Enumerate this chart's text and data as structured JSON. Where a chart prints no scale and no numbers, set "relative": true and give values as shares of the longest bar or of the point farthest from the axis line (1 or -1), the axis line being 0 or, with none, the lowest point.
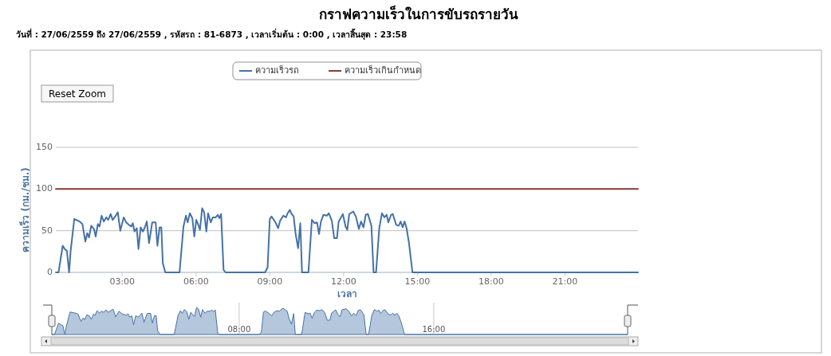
{
  "chart_data": [
    {
      "type": "line",
      "title": "กราฟความเร็วในการขับรถรายวัน",
      "subtitle": "วันที่ : 27/06/2559 ถึง 27/06/2559 , รหัสรถ : 81-6873 , เวลาเริ่มต้น : 0:00 , เวลาสิ้นสุด : 23:58",
      "xlabel": "เวลา",
      "ylabel": "ความเร็ว (กม./ชม.)",
      "annotations": [
        "Reset Zoom"
      ],
      "xlim": [
        0.3,
        23.97
      ],
      "xticks": [
        {
          "value": 3,
          "label": "03:00"
        },
        {
          "value": 6,
          "label": "06:00"
        },
        {
          "value": 9,
          "label": "09:00"
        },
        {
          "value": 12,
          "label": "12:00"
        },
        {
          "value": 15,
          "label": "15:00"
        },
        {
          "value": 18,
          "label": "18:00"
        },
        {
          "value": 21,
          "label": "21:00"
        }
      ],
      "ylim": [
        0,
        150
      ],
      "yticks": [
        0,
        50,
        100,
        150
      ],
      "grid": "y",
      "legend": "top",
      "series": [
        {
          "name": "ความเร็วรถ",
          "color": "#4572a7",
          "x": [
            0.3,
            0.41,
            0.58,
            0.69,
            0.75,
            0.84,
            0.9,
            1.05,
            1.27,
            1.38,
            1.5,
            1.58,
            1.65,
            1.74,
            1.85,
            1.92,
            2.01,
            2.08,
            2.16,
            2.25,
            2.35,
            2.43,
            2.53,
            2.61,
            2.69,
            2.82,
            2.92,
            3.06,
            3.16,
            3.27,
            3.37,
            3.43,
            3.5,
            3.59,
            3.66,
            3.75,
            3.84,
            3.92,
            4.0,
            4.09,
            4.22,
            4.36,
            4.43,
            4.52,
            4.59,
            4.65,
            4.75,
            5.33,
            5.49,
            5.59,
            5.66,
            5.75,
            5.85,
            5.93,
            6.01,
            6.08,
            6.16,
            6.25,
            6.33,
            6.42,
            6.49,
            6.6,
            6.68,
            6.8,
            6.89,
            6.95,
            7.02,
            7.12,
            7.2,
            8.81,
            8.91,
            9.0,
            9.07,
            9.23,
            9.34,
            9.42,
            9.55,
            9.66,
            9.71,
            9.81,
            9.89,
            9.97,
            10.05,
            10.15,
            10.24,
            10.31,
            10.57,
            10.71,
            10.82,
            10.92,
            11.0,
            11.08,
            11.18,
            11.32,
            11.4,
            11.52,
            11.62,
            11.73,
            11.8,
            11.97,
            12.08,
            12.15,
            12.23,
            12.39,
            12.5,
            12.62,
            12.71,
            12.81,
            12.9,
            12.99,
            13.13,
            13.22,
            13.32,
            13.45,
            13.56,
            13.66,
            13.75,
            13.82,
            13.93,
            14.0,
            14.14,
            14.24,
            14.32,
            14.4,
            14.48,
            14.56,
            14.66,
            14.8,
            23.97
          ],
          "values": [
            0,
            0,
            32,
            27,
            26,
            0,
            25,
            64,
            61,
            58,
            37,
            47,
            42,
            56,
            52,
            43,
            58,
            55,
            68,
            61,
            66,
            63,
            70,
            63,
            66,
            72,
            50,
            66,
            60,
            57,
            55,
            59,
            49,
            53,
            28,
            54,
            49,
            54,
            61,
            35,
            60,
            60,
            32,
            54,
            54,
            11,
            0,
            0,
            55,
            68,
            60,
            71,
            65,
            43,
            63,
            58,
            51,
            77,
            72,
            49,
            71,
            60,
            66,
            66,
            69,
            65,
            70,
            3,
            0,
            0,
            6,
            64,
            67,
            60,
            53,
            62,
            68,
            66,
            70,
            75,
            70,
            67,
            46,
            29,
            59,
            0,
            0,
            63,
            59,
            60,
            46,
            61,
            69,
            68,
            71,
            62,
            41,
            41,
            61,
            70,
            55,
            51,
            70,
            73,
            67,
            52,
            61,
            54,
            69,
            70,
            56,
            0,
            0,
            53,
            71,
            66,
            69,
            60,
            69,
            70,
            57,
            56,
            61,
            54,
            61,
            53,
            35,
            0,
            0
          ]
        },
        {
          "name": "ความเร็วเกินกำหนด",
          "color": "#8b3a3a",
          "x": [
            0.3,
            23.97
          ],
          "values": [
            100,
            100
          ]
        }
      ]
    },
    {
      "type": "area",
      "relative": true,
      "color": "#4572a7",
      "grid": "x",
      "tick_labels": "x",
      "xlim": [
        0.3,
        23.97
      ],
      "xticks": [
        {
          "value": 8,
          "label": "08:00"
        },
        {
          "value": 16,
          "label": "16:00"
        }
      ],
      "x": [
        0.3,
        0.41,
        0.58,
        0.69,
        0.75,
        0.84,
        0.9,
        1.05,
        1.27,
        1.38,
        1.5,
        1.58,
        1.65,
        1.74,
        1.85,
        1.92,
        2.01,
        2.08,
        2.16,
        2.25,
        2.35,
        2.43,
        2.53,
        2.61,
        2.69,
        2.82,
        2.92,
        3.06,
        3.16,
        3.27,
        3.37,
        3.43,
        3.5,
        3.59,
        3.66,
        3.75,
        3.84,
        3.92,
        4.0,
        4.09,
        4.22,
        4.36,
        4.43,
        4.52,
        4.59,
        4.65,
        4.75,
        5.33,
        5.49,
        5.59,
        5.66,
        5.75,
        5.85,
        5.93,
        6.01,
        6.08,
        6.16,
        6.25,
        6.33,
        6.42,
        6.49,
        6.6,
        6.68,
        6.8,
        6.89,
        6.95,
        7.02,
        7.12,
        7.2,
        8.81,
        8.91,
        9.0,
        9.07,
        9.23,
        9.34,
        9.42,
        9.55,
        9.66,
        9.71,
        9.81,
        9.89,
        9.97,
        10.05,
        10.15,
        10.24,
        10.31,
        10.57,
        10.71,
        10.82,
        10.92,
        11.0,
        11.08,
        11.18,
        11.32,
        11.4,
        11.52,
        11.62,
        11.73,
        11.8,
        11.97,
        12.08,
        12.15,
        12.23,
        12.39,
        12.5,
        12.62,
        12.71,
        12.81,
        12.9,
        12.99,
        13.13,
        13.22,
        13.32,
        13.45,
        13.56,
        13.66,
        13.75,
        13.82,
        13.93,
        14.0,
        14.14,
        14.24,
        14.32,
        14.4,
        14.48,
        14.56,
        14.66,
        14.8,
        23.97
      ],
      "values": [
        0,
        0,
        0.42,
        0.35,
        0.34,
        0,
        0.32,
        0.83,
        0.79,
        0.75,
        0.48,
        0.61,
        0.55,
        0.73,
        0.68,
        0.56,
        0.75,
        0.71,
        0.88,
        0.79,
        0.86,
        0.82,
        0.91,
        0.82,
        0.86,
        0.94,
        0.65,
        0.86,
        0.78,
        0.74,
        0.71,
        0.77,
        0.64,
        0.69,
        0.36,
        0.7,
        0.64,
        0.7,
        0.79,
        0.45,
        0.78,
        0.78,
        0.42,
        0.7,
        0.7,
        0.14,
        0,
        0,
        0.71,
        0.88,
        0.78,
        0.92,
        0.84,
        0.56,
        0.82,
        0.75,
        0.66,
        1,
        0.94,
        0.64,
        0.92,
        0.78,
        0.86,
        0.86,
        0.9,
        0.84,
        0.91,
        0.04,
        0,
        0,
        0.08,
        0.83,
        0.87,
        0.78,
        0.69,
        0.81,
        0.88,
        0.86,
        0.91,
        0.97,
        0.91,
        0.87,
        0.6,
        0.38,
        0.77,
        0,
        0,
        0.82,
        0.77,
        0.78,
        0.6,
        0.79,
        0.9,
        0.88,
        0.92,
        0.81,
        0.53,
        0.53,
        0.79,
        0.91,
        0.71,
        0.66,
        0.91,
        0.95,
        0.87,
        0.68,
        0.79,
        0.7,
        0.9,
        0.91,
        0.73,
        0,
        0,
        0.69,
        0.92,
        0.86,
        0.9,
        0.78,
        0.9,
        0.91,
        0.74,
        0.73,
        0.79,
        0.7,
        0.79,
        0.69,
        0.45,
        0,
        0
      ]
    }
  ]
}
